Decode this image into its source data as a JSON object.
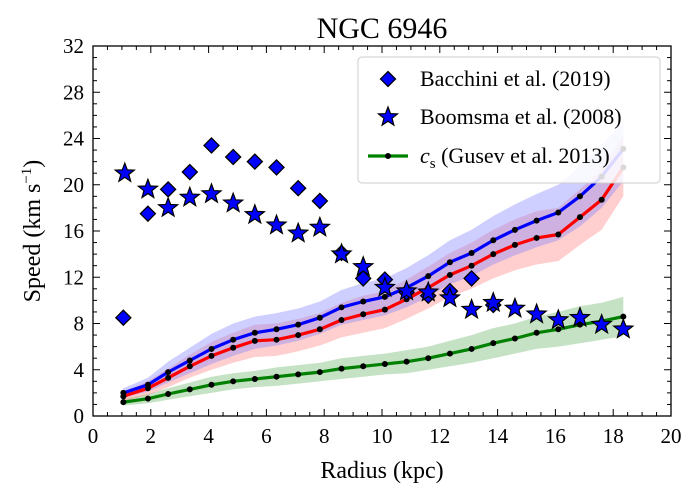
{
  "chart_data": {
    "type": "line",
    "title": "NGC 6946",
    "xlabel": "Radius (kpc)",
    "ylabel_main": "Speed (km s",
    "ylabel_sup": "−1",
    "ylabel_close": ")",
    "xlim": [
      0,
      20
    ],
    "ylim": [
      0,
      32
    ],
    "xticks": [
      0,
      2,
      4,
      6,
      8,
      10,
      12,
      14,
      16,
      18,
      20
    ],
    "yticks": [
      0,
      4,
      8,
      12,
      16,
      20,
      24,
      28,
      32
    ],
    "grid": false,
    "legend_position": "top-right",
    "legend": [
      {
        "label": "Bacchini et al. (2019)",
        "marker": "diamond",
        "color": "#0000ff"
      },
      {
        "label": "Boomsma et al. (2008)",
        "marker": "star",
        "color": "#0000ff"
      },
      {
        "label_math": "c",
        "label_sub": "s",
        "label_rest": " (Gusev et al. 2013)",
        "marker": "line-dot",
        "color": "#008000"
      }
    ],
    "series": [
      {
        "name": "Bacchini et al. (2019)",
        "kind": "markers",
        "marker": "diamond",
        "color": "#0000ff",
        "x": [
          1.05,
          1.9,
          2.6,
          3.35,
          4.1,
          4.85,
          5.6,
          6.35,
          7.1,
          7.85,
          8.6,
          9.35,
          10.1,
          10.85,
          11.6,
          12.35,
          13.1,
          13.85
        ],
        "y": [
          8.5,
          17.5,
          19.6,
          21.1,
          23.4,
          22.4,
          22.0,
          21.5,
          19.7,
          18.6,
          14.1,
          11.9,
          11.8,
          10.7,
          10.4,
          10.8,
          11.9,
          9.6
        ]
      },
      {
        "name": "Boomsma et al. (2008)",
        "kind": "markers",
        "marker": "star",
        "color": "#0000ff",
        "x": [
          1.1,
          1.9,
          2.6,
          3.35,
          4.1,
          4.85,
          5.6,
          6.35,
          7.1,
          7.85,
          8.6,
          9.35,
          10.1,
          10.85,
          11.6,
          12.35,
          13.1,
          13.85,
          14.6,
          15.35,
          16.1,
          16.85,
          17.6,
          18.35
        ],
        "y": [
          21.0,
          19.6,
          18.0,
          18.9,
          19.2,
          18.4,
          17.4,
          16.5,
          15.8,
          16.3,
          14.0,
          12.9,
          11.1,
          10.8,
          10.7,
          10.2,
          9.2,
          9.8,
          9.3,
          8.8,
          8.3,
          8.5,
          7.9,
          7.5
        ]
      },
      {
        "name": "blue curve",
        "kind": "line-band",
        "color": "#0000ff",
        "band_color": "#7f7fff",
        "x": [
          1.05,
          1.9,
          2.6,
          3.35,
          4.1,
          4.85,
          5.6,
          6.35,
          7.1,
          7.85,
          8.6,
          9.35,
          10.1,
          10.85,
          11.6,
          12.35,
          13.1,
          13.85,
          14.6,
          15.35,
          16.1,
          16.85,
          17.6,
          18.35
        ],
        "y": [
          2.0,
          2.7,
          3.8,
          4.8,
          5.8,
          6.6,
          7.2,
          7.5,
          7.9,
          8.5,
          9.4,
          9.9,
          10.3,
          11.1,
          12.1,
          13.3,
          14.1,
          15.2,
          16.1,
          16.9,
          17.6,
          19.0,
          20.7,
          23.1
        ],
        "y_low": [
          1.6,
          2.1,
          2.9,
          3.7,
          4.5,
          5.2,
          5.8,
          6.1,
          6.5,
          7.1,
          7.9,
          8.3,
          8.7,
          9.4,
          10.3,
          11.4,
          12.1,
          13.1,
          13.9,
          14.6,
          15.2,
          16.4,
          18.0,
          20.3
        ],
        "y_high": [
          2.4,
          3.3,
          4.7,
          5.9,
          7.1,
          8.0,
          8.6,
          8.9,
          9.3,
          9.9,
          10.9,
          11.5,
          11.9,
          12.8,
          13.9,
          15.2,
          16.1,
          17.3,
          18.3,
          19.2,
          20.0,
          21.6,
          23.4,
          25.4
        ]
      },
      {
        "name": "red curve",
        "kind": "line-band",
        "color": "#ff0000",
        "band_color": "#ff8080",
        "x": [
          1.05,
          1.9,
          2.6,
          3.35,
          4.1,
          4.85,
          5.6,
          6.35,
          7.1,
          7.85,
          8.6,
          9.35,
          10.1,
          10.85,
          11.6,
          12.35,
          13.1,
          13.85,
          14.6,
          15.35,
          16.1,
          16.85,
          17.6,
          18.35
        ],
        "y": [
          1.7,
          2.4,
          3.3,
          4.3,
          5.2,
          5.9,
          6.5,
          6.6,
          7.0,
          7.5,
          8.3,
          8.8,
          9.2,
          10.1,
          11.1,
          12.2,
          13.0,
          14.0,
          14.8,
          15.4,
          15.7,
          17.2,
          18.7,
          21.5
        ],
        "y_low": [
          1.3,
          1.8,
          2.5,
          3.3,
          4.0,
          4.6,
          5.1,
          5.2,
          5.6,
          6.1,
          6.8,
          7.2,
          7.6,
          8.4,
          9.3,
          10.3,
          11.0,
          11.9,
          12.6,
          13.1,
          13.4,
          14.8,
          16.1,
          19.0
        ],
        "y_high": [
          2.1,
          3.0,
          4.1,
          5.3,
          6.4,
          7.2,
          7.9,
          8.0,
          8.4,
          8.9,
          9.8,
          10.4,
          10.8,
          11.8,
          12.9,
          14.1,
          15.0,
          16.1,
          17.0,
          17.7,
          18.0,
          19.6,
          21.3,
          24.2
        ]
      },
      {
        "name": "c_s (Gusev et al. 2013)",
        "kind": "line-band",
        "color": "#008000",
        "band_color": "#66b366",
        "x": [
          1.05,
          1.9,
          2.6,
          3.35,
          4.1,
          4.85,
          5.6,
          6.35,
          7.1,
          7.85,
          8.6,
          9.35,
          10.1,
          10.85,
          11.6,
          12.35,
          13.1,
          13.85,
          14.6,
          15.35,
          16.1,
          16.85,
          17.6,
          18.35
        ],
        "y": [
          1.2,
          1.5,
          1.9,
          2.3,
          2.7,
          3.0,
          3.2,
          3.4,
          3.6,
          3.8,
          4.1,
          4.3,
          4.5,
          4.7,
          5.0,
          5.4,
          5.8,
          6.3,
          6.7,
          7.2,
          7.5,
          7.9,
          8.2,
          8.6
        ],
        "y_low": [
          0.9,
          1.1,
          1.4,
          1.7,
          2.0,
          2.3,
          2.5,
          2.6,
          2.8,
          3.0,
          3.2,
          3.4,
          3.6,
          3.7,
          4.0,
          4.3,
          4.6,
          5.0,
          5.4,
          5.8,
          6.0,
          6.3,
          6.6,
          6.9
        ],
        "y_high": [
          1.5,
          1.9,
          2.4,
          2.9,
          3.4,
          3.7,
          3.9,
          4.2,
          4.4,
          4.6,
          5.0,
          5.2,
          5.4,
          5.7,
          6.0,
          6.5,
          7.0,
          7.6,
          8.0,
          8.6,
          9.0,
          9.5,
          9.8,
          10.3
        ]
      }
    ]
  }
}
